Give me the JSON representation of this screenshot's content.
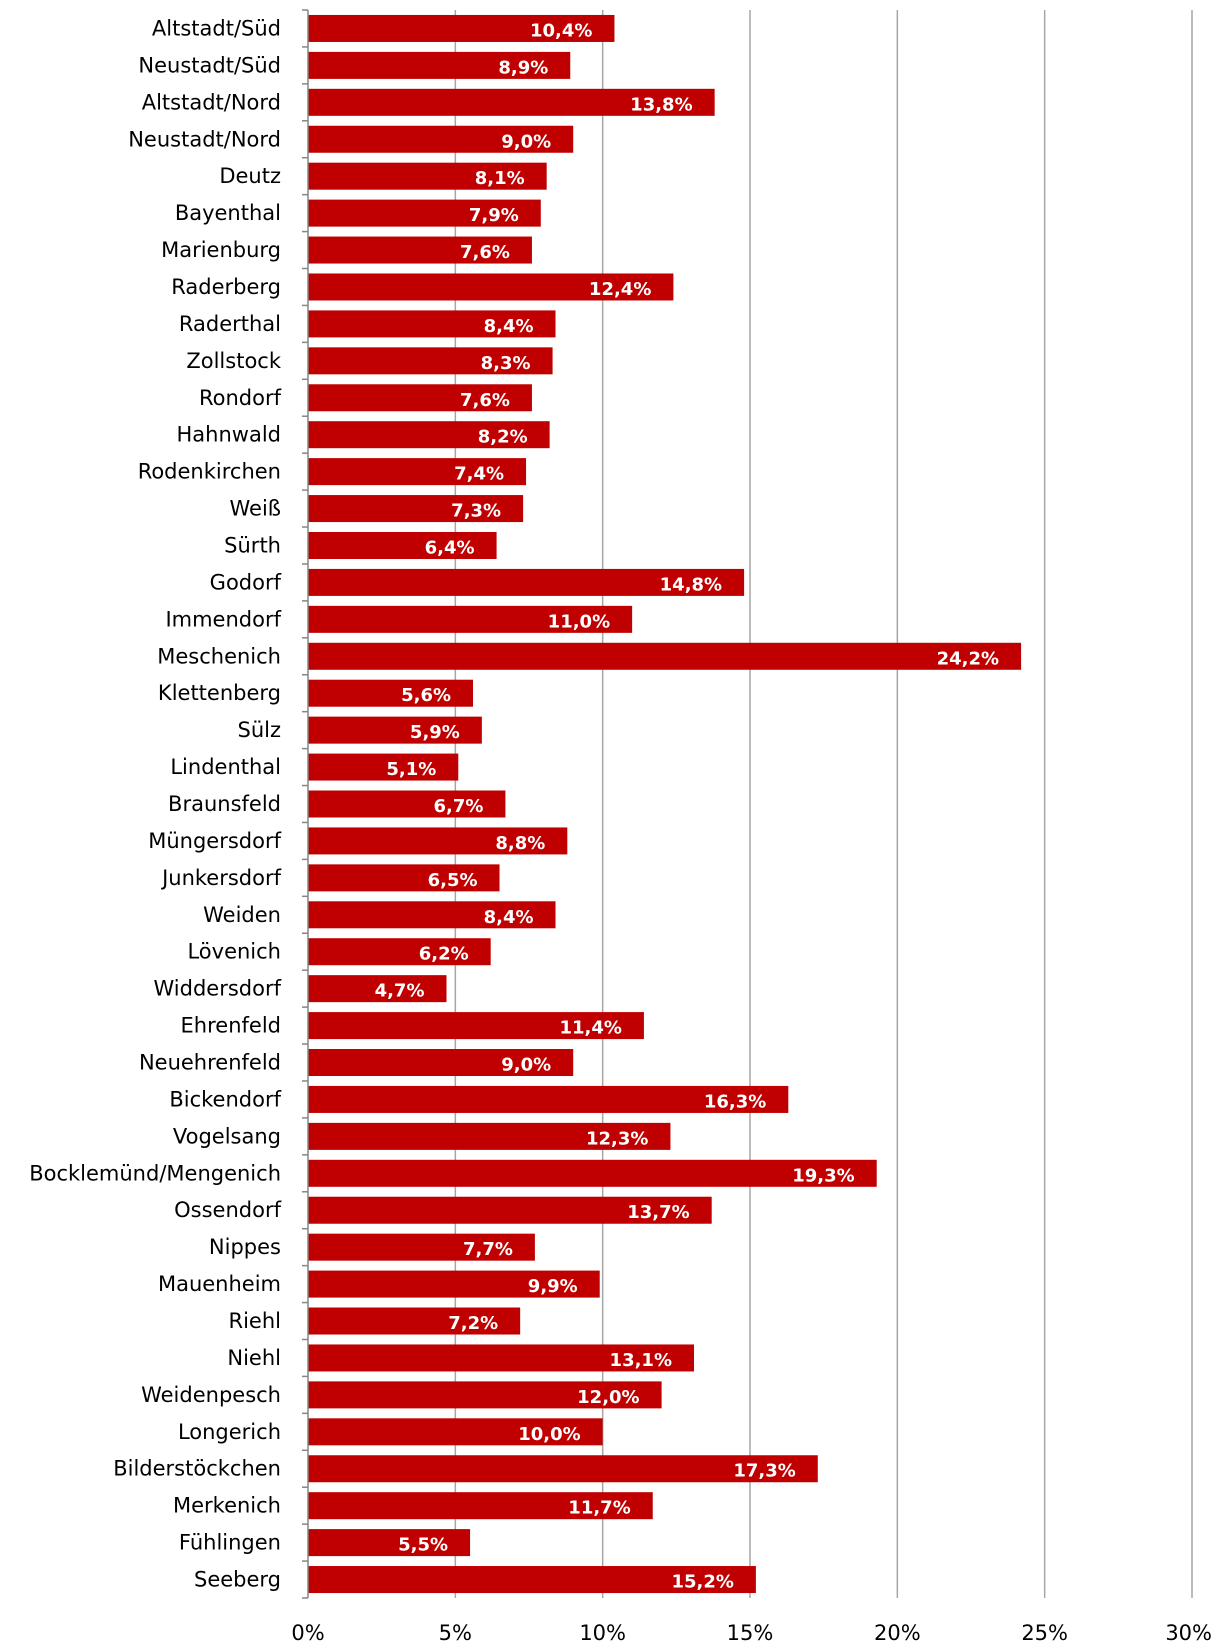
{
  "chart_data": {
    "type": "bar",
    "orientation": "horizontal",
    "categories": [
      "Altstadt/Süd",
      "Neustadt/Süd",
      "Altstadt/Nord",
      "Neustadt/Nord",
      "Deutz",
      "Bayenthal",
      "Marienburg",
      "Raderberg",
      "Raderthal",
      "Zollstock",
      "Rondorf",
      "Hahnwald",
      "Rodenkirchen",
      "Weiß",
      "Sürth",
      "Godorf",
      "Immendorf",
      "Meschenich",
      "Klettenberg",
      "Sülz",
      "Lindenthal",
      "Braunsfeld",
      "Müngersdorf",
      "Junkersdorf",
      "Weiden",
      "Lövenich",
      "Widdersdorf",
      "Ehrenfeld",
      "Neuehrenfeld",
      "Bickendorf",
      "Vogelsang",
      "Bocklemünd/Mengenich",
      "Ossendorf",
      "Nippes",
      "Mauenheim",
      "Riehl",
      "Niehl",
      "Weidenpesch",
      "Longerich",
      "Bilderstöckchen",
      "Merkenich",
      "Fühlingen",
      "Seeberg"
    ],
    "values": [
      10.4,
      8.9,
      13.8,
      9.0,
      8.1,
      7.9,
      7.6,
      12.4,
      8.4,
      8.3,
      7.6,
      8.2,
      7.4,
      7.3,
      6.4,
      14.8,
      11.0,
      24.2,
      5.6,
      5.9,
      5.1,
      6.7,
      8.8,
      6.5,
      8.4,
      6.2,
      4.7,
      11.4,
      9.0,
      16.3,
      12.3,
      19.3,
      13.7,
      7.7,
      9.9,
      7.2,
      13.1,
      12.0,
      10.0,
      17.3,
      11.7,
      5.5,
      15.2
    ],
    "data_labels": [
      "10,4%",
      "8,9%",
      "13,8%",
      "9,0%",
      "8,1%",
      "7,9%",
      "7,6%",
      "12,4%",
      "8,4%",
      "8,3%",
      "7,6%",
      "8,2%",
      "7,4%",
      "7,3%",
      "6,4%",
      "14,8%",
      "11,0%",
      "24,2%",
      "5,6%",
      "5,9%",
      "5,1%",
      "6,7%",
      "8,8%",
      "6,5%",
      "8,4%",
      "6,2%",
      "4,7%",
      "11,4%",
      "9,0%",
      "16,3%",
      "12,3%",
      "19,3%",
      "13,7%",
      "7,7%",
      "9,9%",
      "7,2%",
      "13,1%",
      "12,0%",
      "10,0%",
      "17,3%",
      "11,7%",
      "5,5%",
      "15,2%"
    ],
    "x_ticks": [
      0,
      5,
      10,
      15,
      20,
      25,
      30
    ],
    "x_tick_labels": [
      "0%",
      "5%",
      "10%",
      "15%",
      "20%",
      "25%",
      "30%"
    ],
    "xlim": [
      0,
      30
    ],
    "title": "",
    "xlabel": "",
    "ylabel": "",
    "grid": "vertical",
    "legend": "none",
    "colors": {
      "bar": "#C00000",
      "grid": "#A6A6A6",
      "axis": "#868686",
      "data_label": "#FFFFFF",
      "text": "#000000"
    }
  }
}
